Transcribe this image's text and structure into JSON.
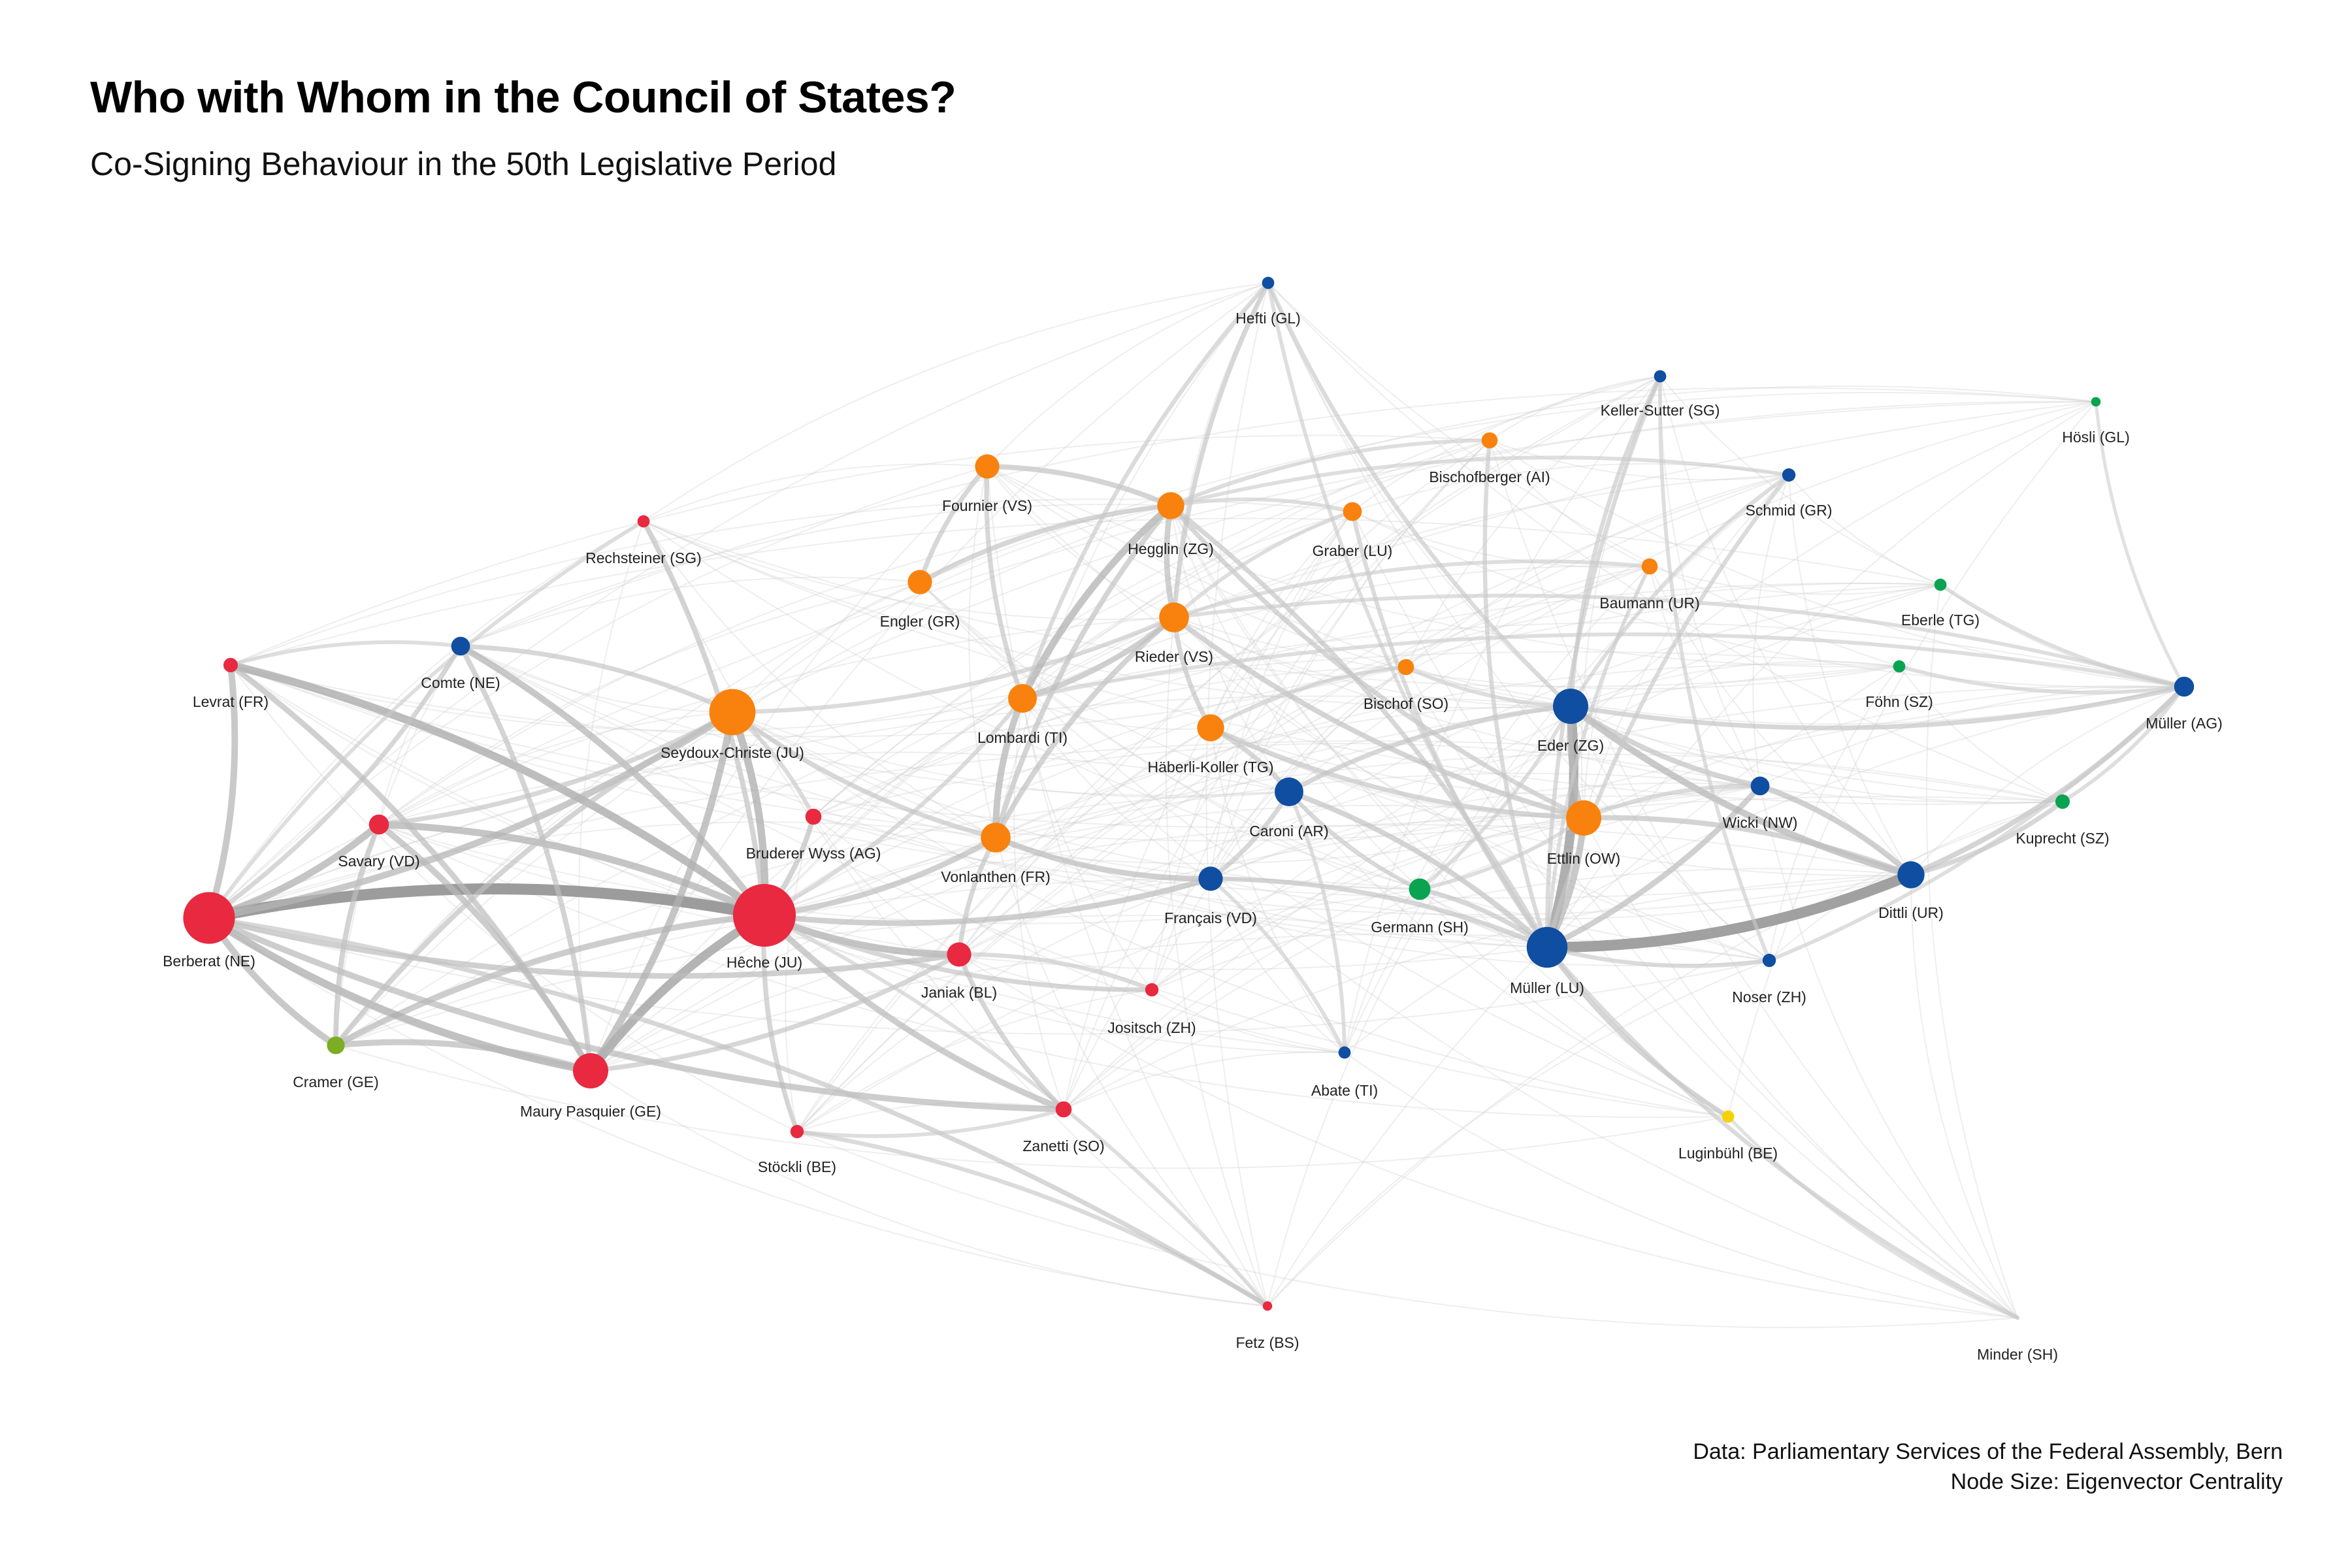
{
  "title": "Who with Whom in the Council of States?",
  "subtitle": "Co-Signing Behaviour in the 50th Legislative Period",
  "caption": {
    "line1": "Data: Parliamentary Services of the Federal Assembly, Bern",
    "line2": "Node Size: Eigenvector Centrality"
  },
  "colors": {
    "red": "#e8293f",
    "orange": "#f8820d",
    "blue": "#0f4ea0",
    "green": "#0aa352",
    "lime": "#7cad22",
    "yellow": "#f6d107",
    "edge": "#9a9a9a"
  },
  "nodes": [
    {
      "id": "hefti",
      "label": "Hefti (GL)",
      "color": "blue",
      "centrality": 0.08
    },
    {
      "id": "keller",
      "label": "Keller-Sutter (SG)",
      "color": "blue",
      "centrality": 0.08
    },
    {
      "id": "hosli",
      "label": "Hösli (GL)",
      "color": "green",
      "centrality": 0.03
    },
    {
      "id": "bischofberger",
      "label": "Bischofberger (AI)",
      "color": "orange",
      "centrality": 0.15
    },
    {
      "id": "fournier",
      "label": "Fournier (VS)",
      "color": "orange",
      "centrality": 0.3
    },
    {
      "id": "schmid",
      "label": "Schmid (GR)",
      "color": "blue",
      "centrality": 0.1
    },
    {
      "id": "hegglin",
      "label": "Hegglin (ZG)",
      "color": "orange",
      "centrality": 0.35
    },
    {
      "id": "graber",
      "label": "Graber (LU)",
      "color": "orange",
      "centrality": 0.2
    },
    {
      "id": "rechsteiner",
      "label": "Rechsteiner (SG)",
      "color": "red",
      "centrality": 0.08
    },
    {
      "id": "baumann",
      "label": "Baumann (UR)",
      "color": "orange",
      "centrality": 0.15
    },
    {
      "id": "engler",
      "label": "Engler (GR)",
      "color": "orange",
      "centrality": 0.3
    },
    {
      "id": "eberle",
      "label": "Eberle (TG)",
      "color": "green",
      "centrality": 0.08
    },
    {
      "id": "rieder",
      "label": "Rieder (VS)",
      "color": "orange",
      "centrality": 0.4
    },
    {
      "id": "levrat",
      "label": "Levrat (FR)",
      "color": "red",
      "centrality": 0.12
    },
    {
      "id": "comte",
      "label": "Comte (NE)",
      "color": "blue",
      "centrality": 0.2
    },
    {
      "id": "bischof",
      "label": "Bischof (SO)",
      "color": "orange",
      "centrality": 0.15
    },
    {
      "id": "fohn",
      "label": "Föhn (SZ)",
      "color": "green",
      "centrality": 0.08
    },
    {
      "id": "mullerag",
      "label": "Müller (AG)",
      "color": "blue",
      "centrality": 0.22
    },
    {
      "id": "seydoux",
      "label": "Seydoux-Christe (JU)",
      "color": "orange",
      "centrality": 0.7
    },
    {
      "id": "lombardi",
      "label": "Lombardi (TI)",
      "color": "orange",
      "centrality": 0.38
    },
    {
      "id": "eder",
      "label": "Eder (ZG)",
      "color": "blue",
      "centrality": 0.5
    },
    {
      "id": "haberli",
      "label": "Häberli-Koller (TG)",
      "color": "orange",
      "centrality": 0.35
    },
    {
      "id": "caroni",
      "label": "Caroni (AR)",
      "color": "blue",
      "centrality": 0.38
    },
    {
      "id": "wicki",
      "label": "Wicki (NW)",
      "color": "blue",
      "centrality": 0.2
    },
    {
      "id": "kuprecht",
      "label": "Kuprecht (SZ)",
      "color": "green",
      "centrality": 0.12
    },
    {
      "id": "bruderer",
      "label": "Bruderer Wyss (AG)",
      "color": "red",
      "centrality": 0.15
    },
    {
      "id": "savary",
      "label": "Savary (VD)",
      "color": "red",
      "centrality": 0.22
    },
    {
      "id": "ettlin",
      "label": "Ettlin (OW)",
      "color": "orange",
      "centrality": 0.5
    },
    {
      "id": "vonlanthen",
      "label": "Vonlanthen (FR)",
      "color": "orange",
      "centrality": 0.4
    },
    {
      "id": "francais",
      "label": "Français (VD)",
      "color": "blue",
      "centrality": 0.3
    },
    {
      "id": "germann",
      "label": "Germann (SH)",
      "color": "green",
      "centrality": 0.25
    },
    {
      "id": "dittli",
      "label": "Dittli (UR)",
      "color": "blue",
      "centrality": 0.35
    },
    {
      "id": "berberat",
      "label": "Berberat (NE)",
      "color": "red",
      "centrality": 0.8
    },
    {
      "id": "heche",
      "label": "Hêche (JU)",
      "color": "red",
      "centrality": 1.0
    },
    {
      "id": "mullerlu",
      "label": "Müller (LU)",
      "color": "blue",
      "centrality": 0.6
    },
    {
      "id": "janiak",
      "label": "Janiak (BL)",
      "color": "red",
      "centrality": 0.3
    },
    {
      "id": "noser",
      "label": "Noser (ZH)",
      "color": "blue",
      "centrality": 0.1
    },
    {
      "id": "jositsch",
      "label": "Jositsch (ZH)",
      "color": "red",
      "centrality": 0.1
    },
    {
      "id": "cramer",
      "label": "Cramer (GE)",
      "color": "lime",
      "centrality": 0.18
    },
    {
      "id": "abate",
      "label": "Abate (TI)",
      "color": "blue",
      "centrality": 0.08
    },
    {
      "id": "mauryp",
      "label": "Maury Pasquier (GE)",
      "color": "red",
      "centrality": 0.5
    },
    {
      "id": "zanetti",
      "label": "Zanetti (SO)",
      "color": "red",
      "centrality": 0.15
    },
    {
      "id": "luginbuhl",
      "label": "Luginbühl (BE)",
      "color": "yellow",
      "centrality": 0.08
    },
    {
      "id": "stockli",
      "label": "Stöckli (BE)",
      "color": "red",
      "centrality": 0.1
    },
    {
      "id": "fetz",
      "label": "Fetz (BS)",
      "color": "red",
      "centrality": 0.03
    },
    {
      "id": "minder",
      "label": "Minder (SH)",
      "color": "edge",
      "centrality": 0.0
    }
  ],
  "edges": [
    [
      "heche",
      "berberat",
      1.0
    ],
    [
      "heche",
      "mauryp",
      0.75
    ],
    [
      "heche",
      "savary",
      0.55
    ],
    [
      "heche",
      "levrat",
      0.65
    ],
    [
      "heche",
      "comte",
      0.5
    ],
    [
      "heche",
      "seydoux",
      0.6
    ],
    [
      "heche",
      "janiak",
      0.55
    ],
    [
      "heche",
      "zanetti",
      0.45
    ],
    [
      "heche",
      "vonlanthen",
      0.4
    ],
    [
      "heche",
      "cramer",
      0.45
    ],
    [
      "heche",
      "bruderer",
      0.35
    ],
    [
      "heche",
      "francais",
      0.4
    ],
    [
      "heche",
      "stockli",
      0.3
    ],
    [
      "heche",
      "rechsteiner",
      0.35
    ],
    [
      "heche",
      "lombardi",
      0.25
    ],
    [
      "heche",
      "jositsch",
      0.3
    ],
    [
      "berberat",
      "mauryp",
      0.6
    ],
    [
      "berberat",
      "levrat",
      0.5
    ],
    [
      "berberat",
      "savary",
      0.55
    ],
    [
      "berberat",
      "cramer",
      0.5
    ],
    [
      "berberat",
      "seydoux",
      0.5
    ],
    [
      "berberat",
      "zanetti",
      0.45
    ],
    [
      "berberat",
      "janiak",
      0.4
    ],
    [
      "berberat",
      "comte",
      0.3
    ],
    [
      "mauryp",
      "seydoux",
      0.55
    ],
    [
      "mauryp",
      "savary",
      0.45
    ],
    [
      "mauryp",
      "cramer",
      0.45
    ],
    [
      "mauryp",
      "levrat",
      0.4
    ],
    [
      "mauryp",
      "comte",
      0.35
    ],
    [
      "mauryp",
      "janiak",
      0.3
    ],
    [
      "savary",
      "cramer",
      0.35
    ],
    [
      "savary",
      "seydoux",
      0.3
    ],
    [
      "seydoux",
      "vonlanthen",
      0.3
    ],
    [
      "seydoux",
      "comte",
      0.3
    ],
    [
      "seydoux",
      "rieder",
      0.25
    ],
    [
      "seydoux",
      "cramer",
      0.35
    ],
    [
      "mullerlu",
      "dittli",
      0.95
    ],
    [
      "mullerlu",
      "eder",
      0.8
    ],
    [
      "mullerlu",
      "ettlin",
      0.5
    ],
    [
      "mullerlu",
      "wicki",
      0.4
    ],
    [
      "mullerlu",
      "germann",
      0.3
    ],
    [
      "mullerlu",
      "francais",
      0.3
    ],
    [
      "mullerlu",
      "caroni",
      0.35
    ],
    [
      "mullerlu",
      "hegglin",
      0.3
    ],
    [
      "mullerlu",
      "luginbuhl",
      0.3
    ],
    [
      "mullerlu",
      "minder",
      0.25
    ],
    [
      "mullerlu",
      "noser",
      0.25
    ],
    [
      "eder",
      "dittli",
      0.5
    ],
    [
      "eder",
      "ettlin",
      0.4
    ],
    [
      "eder",
      "wicki",
      0.35
    ],
    [
      "eder",
      "caroni",
      0.3
    ],
    [
      "eder",
      "mullerag",
      0.3
    ],
    [
      "dittli",
      "wicki",
      0.4
    ],
    [
      "dittli",
      "ettlin",
      0.35
    ],
    [
      "dittli",
      "mullerag",
      0.35
    ],
    [
      "dittli",
      "kuprecht",
      0.3
    ],
    [
      "hegglin",
      "lombardi",
      0.55
    ],
    [
      "hegglin",
      "rieder",
      0.4
    ],
    [
      "hegglin",
      "fournier",
      0.35
    ],
    [
      "hegglin",
      "engler",
      0.3
    ],
    [
      "hegglin",
      "vonlanthen",
      0.35
    ],
    [
      "hegglin",
      "ettlin",
      0.3
    ],
    [
      "lombardi",
      "vonlanthen",
      0.5
    ],
    [
      "lombardi",
      "rieder",
      0.4
    ],
    [
      "rieder",
      "vonlanthen",
      0.35
    ],
    [
      "rieder",
      "haberli",
      0.3
    ],
    [
      "rieder",
      "ettlin",
      0.35
    ],
    [
      "fournier",
      "engler",
      0.3
    ],
    [
      "fournier",
      "lombardi",
      0.3
    ],
    [
      "vonlanthen",
      "francais",
      0.4
    ],
    [
      "vonlanthen",
      "janiak",
      0.3
    ],
    [
      "francais",
      "caroni",
      0.3
    ],
    [
      "caroni",
      "haberli",
      0.3
    ],
    [
      "caroni",
      "germann",
      0.25
    ],
    [
      "haberli",
      "ettlin",
      0.3
    ],
    [
      "graber",
      "mullerlu",
      0.25
    ],
    [
      "hefti",
      "rieder",
      0.3
    ],
    [
      "hefti",
      "lombardi",
      0.25
    ],
    [
      "hefti",
      "eder",
      0.25
    ],
    [
      "hefti",
      "mullerlu",
      0.2
    ],
    [
      "keller",
      "eder",
      0.25
    ],
    [
      "keller",
      "mullerlu",
      0.25
    ],
    [
      "keller",
      "noser",
      0.2
    ],
    [
      "hosli",
      "mullerag",
      0.15
    ],
    [
      "bischofberger",
      "mullerlu",
      0.25
    ],
    [
      "bischofberger",
      "hegglin",
      0.2
    ],
    [
      "schmid",
      "mullerlu",
      0.25
    ],
    [
      "schmid",
      "eder",
      0.2
    ],
    [
      "baumann",
      "mullerlu",
      0.2
    ],
    [
      "eberle",
      "mullerag",
      0.2
    ],
    [
      "fohn",
      "mullerag",
      0.2
    ],
    [
      "bischof",
      "haberli",
      0.2
    ],
    [
      "kuprecht",
      "mullerag",
      0.2
    ],
    [
      "noser",
      "mullerag",
      0.2
    ],
    [
      "luginbuhl",
      "minder",
      0.15
    ],
    [
      "fetz",
      "stockli",
      0.25
    ],
    [
      "fetz",
      "heche",
      0.2
    ],
    [
      "fetz",
      "berberat",
      0.3
    ],
    [
      "abate",
      "caroni",
      0.2
    ],
    [
      "abate",
      "francais",
      0.2
    ],
    [
      "janiak",
      "zanetti",
      0.3
    ],
    [
      "stockli",
      "zanetti",
      0.2
    ],
    [
      "jositsch",
      "janiak",
      0.25
    ],
    [
      "bruderer",
      "seydoux",
      0.25
    ],
    [
      "rechsteiner",
      "berberat",
      0.2
    ],
    [
      "comte",
      "levrat",
      0.2
    ],
    [
      "mullerag",
      "rieder",
      0.2
    ],
    [
      "mullerag",
      "lombardi",
      0.2
    ],
    [
      "graber",
      "hegglin",
      0.2
    ],
    [
      "graber",
      "rieder",
      0.2
    ],
    [
      "baumann",
      "rieder",
      0.2
    ],
    [
      "schmid",
      "hegglin",
      0.2
    ],
    [
      "bischof",
      "eder",
      0.2
    ],
    [
      "germann",
      "ettlin",
      0.2
    ],
    [
      "germann",
      "eder",
      0.2
    ],
    [
      "wicki",
      "ettlin",
      0.25
    ]
  ]
}
